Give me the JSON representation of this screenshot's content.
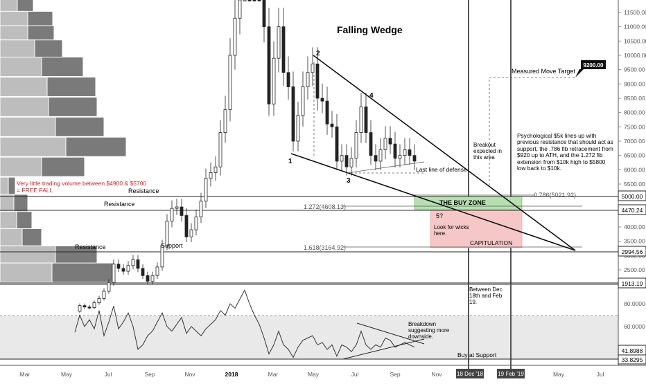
{
  "chart_data": {
    "type": "candlestick",
    "title": "Falling Wedge",
    "price_axis": {
      "ticks": [
        "11500.00",
        "11000.00",
        "10500.00",
        "10000.00",
        "9500.00",
        "9000.00",
        "8500.00",
        "8000.00",
        "7500.00",
        "7000.00",
        "6500.00",
        "6000.00",
        "5500.00",
        "5000.00",
        "4500.00",
        "4000.00",
        "3500.00",
        "3000.00",
        "2500.00"
      ],
      "ylim": [
        1800,
        11900
      ],
      "price_labels": [
        "5000.00",
        "4470.24",
        "2994.56",
        "1913.19"
      ],
      "target_label": "9200.00"
    },
    "rsi_axis": {
      "ticks": [
        "80.0000",
        "60.0000"
      ],
      "ylim": [
        28,
        104
      ],
      "value_labels": [
        "41.8988",
        "33.8295"
      ]
    },
    "time_axis": {
      "labels": [
        "Mar",
        "May",
        "Jul",
        "Sep",
        "Nov",
        "2018",
        "Mar",
        "May",
        "Jul",
        "Sep",
        "Nov",
        "Jan",
        "Mar",
        "May",
        "Jul"
      ],
      "highlight_labels": [
        "18 Dec '18",
        "19 Feb '19"
      ]
    },
    "fib_levels": [
      {
        "label": "0.786(5021.92)",
        "value": 5021.92
      },
      {
        "label": "1.272(4608.13)",
        "value": 4608.13
      },
      {
        "label": "1.618(3164.92)",
        "value": 3164.92
      }
    ],
    "wave_labels": [
      "1",
      "2",
      "3",
      "4",
      "5?"
    ],
    "zones": {
      "buy_zone": "THE BUY ZONE",
      "capitulation": "CAPITULATION",
      "wicks": "Look for wicks here."
    },
    "annotations": {
      "volume_note": "Very little trading volume between $4900 & $5700 = FREE FALL",
      "resistance": "Resistance",
      "support": "Support",
      "last_line": "Last line of defense",
      "breakout": "Breakout expected in this area",
      "measured_move": "Measured Move Target",
      "psychological": "Psychological $5k lines up with previous resistance that should act as support, the .786 fib retracement from $920 up to ATH, and the 1.272 fib extension from $10k high to $5800 low back to $10k.",
      "between": "Between Dec 18th and Feb 19.",
      "breakdown": "Breakdown suggesting more downside.",
      "buy_support": "Buy at Support"
    },
    "price_series": [
      [
        0,
        1050
      ],
      [
        1,
        1250
      ],
      [
        2,
        1200
      ],
      [
        3,
        1180
      ],
      [
        4,
        1350
      ],
      [
        5,
        1500
      ],
      [
        6,
        1750
      ],
      [
        7,
        2050
      ],
      [
        8,
        2700
      ],
      [
        9,
        2550
      ],
      [
        10,
        2450
      ],
      [
        11,
        2650
      ],
      [
        12,
        2850
      ],
      [
        13,
        2550
      ],
      [
        14,
        2300
      ],
      [
        15,
        2100
      ],
      [
        16,
        2300
      ],
      [
        17,
        2600
      ],
      [
        18,
        3350
      ],
      [
        19,
        4200
      ],
      [
        20,
        4650
      ],
      [
        21,
        4700
      ],
      [
        22,
        4400
      ],
      [
        23,
        3650
      ],
      [
        24,
        3900
      ],
      [
        25,
        4350
      ],
      [
        26,
        4900
      ],
      [
        27,
        5700
      ],
      [
        28,
        5900
      ],
      [
        29,
        6100
      ],
      [
        30,
        7300
      ],
      [
        31,
        8100
      ],
      [
        32,
        10000
      ],
      [
        33,
        11300
      ],
      [
        34,
        13800
      ],
      [
        35,
        17000
      ],
      [
        36,
        15000
      ],
      [
        37,
        14200
      ],
      [
        38,
        13500
      ],
      [
        39,
        11000
      ],
      [
        40,
        8300
      ],
      [
        41,
        9900
      ],
      [
        42,
        11000
      ],
      [
        43,
        9400
      ],
      [
        44,
        8900
      ],
      [
        45,
        7000
      ],
      [
        46,
        7900
      ],
      [
        47,
        8900
      ],
      [
        48,
        9400
      ],
      [
        49,
        9700
      ],
      [
        50,
        8500
      ],
      [
        51,
        8400
      ],
      [
        52,
        7600
      ],
      [
        53,
        7500
      ],
      [
        54,
        6300
      ],
      [
        55,
        6500
      ],
      [
        56,
        6100
      ],
      [
        57,
        6400
      ],
      [
        58,
        7300
      ],
      [
        59,
        8200
      ],
      [
        60,
        7300
      ],
      [
        61,
        6500
      ],
      [
        62,
        6300
      ],
      [
        63,
        6700
      ],
      [
        64,
        7100
      ],
      [
        65,
        6900
      ],
      [
        66,
        6400
      ],
      [
        67,
        6500
      ],
      [
        68,
        6700
      ],
      [
        69,
        6500
      ],
      [
        70,
        6300
      ]
    ],
    "rsi_series": [
      [
        0,
        55
      ],
      [
        1,
        70
      ],
      [
        2,
        60
      ],
      [
        3,
        66
      ],
      [
        4,
        58
      ],
      [
        5,
        74
      ],
      [
        6,
        52
      ],
      [
        7,
        64
      ],
      [
        8,
        78
      ],
      [
        9,
        58
      ],
      [
        10,
        64
      ],
      [
        11,
        72
      ],
      [
        12,
        60
      ],
      [
        13,
        40
      ],
      [
        14,
        44
      ],
      [
        15,
        52
      ],
      [
        16,
        56
      ],
      [
        17,
        64
      ],
      [
        18,
        72
      ],
      [
        19,
        60
      ],
      [
        20,
        56
      ],
      [
        21,
        62
      ],
      [
        22,
        68
      ],
      [
        23,
        54
      ],
      [
        24,
        60
      ],
      [
        25,
        56
      ],
      [
        26,
        52
      ],
      [
        27,
        58
      ],
      [
        28,
        62
      ],
      [
        29,
        66
      ],
      [
        30,
        74
      ],
      [
        31,
        70
      ],
      [
        32,
        80
      ],
      [
        33,
        76
      ],
      [
        34,
        84
      ],
      [
        35,
        92
      ],
      [
        36,
        80
      ],
      [
        37,
        70
      ],
      [
        38,
        62
      ],
      [
        39,
        50
      ],
      [
        40,
        36
      ],
      [
        41,
        44
      ],
      [
        42,
        56
      ],
      [
        43,
        44
      ],
      [
        44,
        40
      ],
      [
        45,
        33
      ],
      [
        46,
        42
      ],
      [
        47,
        48
      ],
      [
        48,
        50
      ],
      [
        49,
        52
      ],
      [
        50,
        44
      ],
      [
        51,
        46
      ],
      [
        52,
        40
      ],
      [
        53,
        44
      ],
      [
        54,
        34
      ],
      [
        55,
        44
      ],
      [
        56,
        42
      ],
      [
        57,
        38
      ],
      [
        58,
        44
      ],
      [
        59,
        56
      ],
      [
        60,
        44
      ],
      [
        61,
        40
      ],
      [
        62,
        44
      ],
      [
        63,
        42
      ],
      [
        64,
        50
      ],
      [
        65,
        48
      ],
      [
        66,
        42
      ],
      [
        67,
        44
      ],
      [
        68,
        46
      ],
      [
        69,
        44
      ],
      [
        70,
        42
      ]
    ],
    "volume_profile": [
      {
        "price": 11700,
        "value": 48,
        "inner": 25
      },
      {
        "price": 11200,
        "value": 76,
        "inner": 40
      },
      {
        "price": 10700,
        "value": 78,
        "inner": 40
      },
      {
        "price": 10200,
        "value": 90,
        "inner": 50
      },
      {
        "price": 9600,
        "value": 120,
        "inner": 60
      },
      {
        "price": 8900,
        "value": 138,
        "inner": 68
      },
      {
        "price": 8200,
        "value": 140,
        "inner": 70
      },
      {
        "price": 7500,
        "value": 150,
        "inner": 80
      },
      {
        "price": 6800,
        "value": 182,
        "inner": 95
      },
      {
        "price": 6100,
        "value": 122,
        "inner": 60
      },
      {
        "price": 5400,
        "value": 22,
        "inner": 12
      },
      {
        "price": 4800,
        "value": 40,
        "inner": 20
      },
      {
        "price": 4200,
        "value": 46,
        "inner": 24
      },
      {
        "price": 3600,
        "value": 60,
        "inner": 32
      },
      {
        "price": 3000,
        "value": 140,
        "inner": 80
      },
      {
        "price": 2400,
        "value": 165,
        "inner": 75
      }
    ]
  }
}
